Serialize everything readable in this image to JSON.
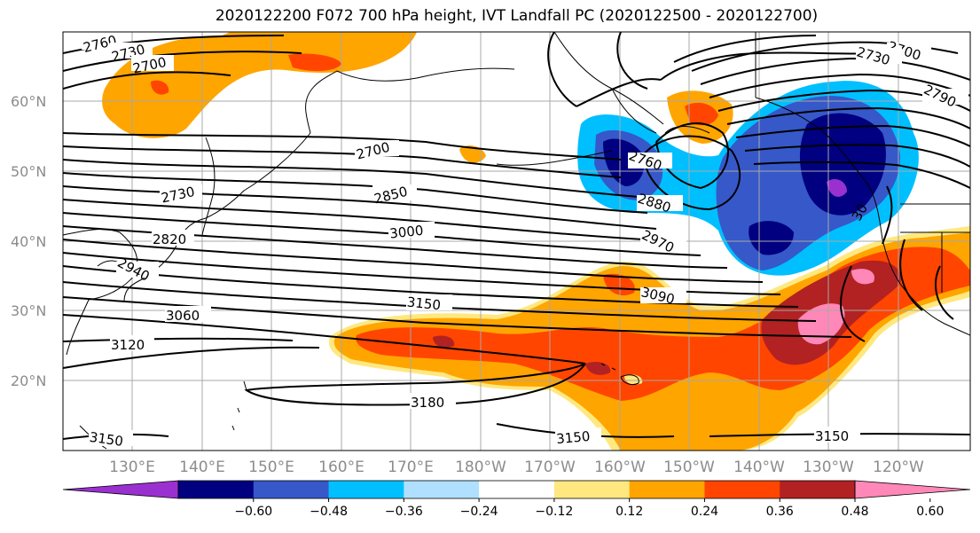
{
  "title": "2020122200 F072 700 hPa height, IVT Landfall PC (2020122500 - 2020122700)",
  "map": {
    "lat_labels": [
      "60°N",
      "50°N",
      "40°N",
      "30°N",
      "20°N"
    ],
    "lon_labels": [
      "130°E",
      "140°E",
      "150°E",
      "160°E",
      "170°E",
      "180°W",
      "170°W",
      "160°W",
      "150°W",
      "140°W",
      "130°W",
      "120°W"
    ],
    "contour_labels": [
      {
        "text": "2760",
        "region": "northwest"
      },
      {
        "text": "2730",
        "region": "northwest"
      },
      {
        "text": "2700",
        "region": "northwest"
      },
      {
        "text": "2700",
        "region": "north-central"
      },
      {
        "text": "2730",
        "region": "west"
      },
      {
        "text": "2820",
        "region": "west"
      },
      {
        "text": "2940",
        "region": "west"
      },
      {
        "text": "3060",
        "region": "west"
      },
      {
        "text": "3120",
        "region": "west"
      },
      {
        "text": "3150",
        "region": "southwest"
      },
      {
        "text": "2850",
        "region": "central"
      },
      {
        "text": "3000",
        "region": "central"
      },
      {
        "text": "3150",
        "region": "central"
      },
      {
        "text": "3180",
        "region": "south-central"
      },
      {
        "text": "3150",
        "region": "south-central"
      },
      {
        "text": "2760",
        "region": "gulf of alaska"
      },
      {
        "text": "2880",
        "region": "gulf of alaska"
      },
      {
        "text": "2970",
        "region": "east-central"
      },
      {
        "text": "3090",
        "region": "east-central"
      },
      {
        "text": "3150",
        "region": "southeast"
      },
      {
        "text": "2700",
        "region": "northeast"
      },
      {
        "text": "2730",
        "region": "northeast"
      },
      {
        "text": "2790",
        "region": "northeast"
      },
      {
        "text": "30",
        "region": "pacific northwest coast"
      }
    ]
  },
  "colorbar": {
    "tick_labels": [
      "−0.60",
      "−0.48",
      "−0.36",
      "−0.24",
      "−0.12",
      "0.12",
      "0.24",
      "0.36",
      "0.48",
      "0.60"
    ],
    "colors": [
      "#9b30d0",
      "#000080",
      "#3658c8",
      "#00bfff",
      "#b0e0ff",
      "#ffffff",
      "#ffe880",
      "#ffa500",
      "#ff4500",
      "#b22222",
      "#ff88b8"
    ]
  }
}
